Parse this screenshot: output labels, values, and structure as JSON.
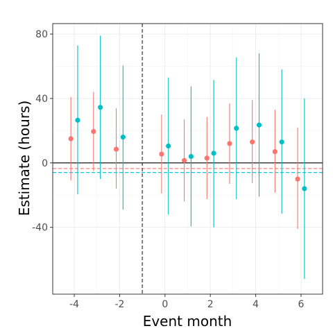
{
  "chart_data": {
    "type": "scatter",
    "subtype": "event-study point estimates with confidence intervals",
    "title": "",
    "xlabel": "Event month",
    "ylabel": "Estimate (hours)",
    "xlim": [
      -4.95,
      6.95
    ],
    "ylim": [
      -81.5,
      86.5
    ],
    "x_ticks": [
      -4,
      -2,
      0,
      2,
      4,
      6
    ],
    "x_tick_labels": [
      "-4",
      "-2",
      "0",
      "2",
      "4",
      "6"
    ],
    "y_ticks": [
      -40,
      0,
      40,
      80
    ],
    "y_tick_labels": [
      "-40",
      "0",
      "40",
      "80"
    ],
    "grid": true,
    "legend": "none",
    "reference_lines": {
      "zero_line": 0,
      "event_line_x": -1,
      "series_means": [
        {
          "series": "red",
          "value": -3.5
        },
        {
          "series": "teal",
          "value": -6.0
        }
      ]
    },
    "series": [
      {
        "color": "#F8766D",
        "points": [
          {
            "x": -4,
            "y": 15,
            "lo": -11,
            "hi": 41
          },
          {
            "x": -3,
            "y": 19.5,
            "lo": -5,
            "hi": 44
          },
          {
            "x": -2,
            "y": 8.5,
            "lo": -16,
            "hi": 34
          },
          {
            "x": 0,
            "y": 5.5,
            "lo": -19,
            "hi": 30
          },
          {
            "x": 1,
            "y": 1.5,
            "lo": -24,
            "hi": 27
          },
          {
            "x": 2,
            "y": 3,
            "lo": -22.5,
            "hi": 28.5
          },
          {
            "x": 3,
            "y": 12,
            "lo": -13,
            "hi": 37
          },
          {
            "x": 4,
            "y": 13,
            "lo": -12.5,
            "hi": 39
          },
          {
            "x": 5,
            "y": 7,
            "lo": -18.5,
            "hi": 33
          },
          {
            "x": 6,
            "y": -10,
            "lo": -41,
            "hi": 22
          }
        ]
      },
      {
        "color": "#00BFC4",
        "points": [
          {
            "x": -4,
            "y": 26.5,
            "lo": -19.5,
            "hi": 73
          },
          {
            "x": -3,
            "y": 34.5,
            "lo": -10,
            "hi": 79
          },
          {
            "x": -2,
            "y": 16,
            "lo": -29,
            "hi": 60.5
          },
          {
            "x": 0,
            "y": 10.5,
            "lo": -32,
            "hi": 53
          },
          {
            "x": 1,
            "y": 4,
            "lo": -39.5,
            "hi": 47.5
          },
          {
            "x": 2,
            "y": 6,
            "lo": -40,
            "hi": 51.5
          },
          {
            "x": 3,
            "y": 21.5,
            "lo": -22.5,
            "hi": 65.5
          },
          {
            "x": 4,
            "y": 23.5,
            "lo": -21,
            "hi": 68
          },
          {
            "x": 5,
            "y": 13,
            "lo": -31.5,
            "hi": 58
          },
          {
            "x": 6,
            "y": -16,
            "lo": -72,
            "hi": 40
          }
        ]
      }
    ]
  }
}
